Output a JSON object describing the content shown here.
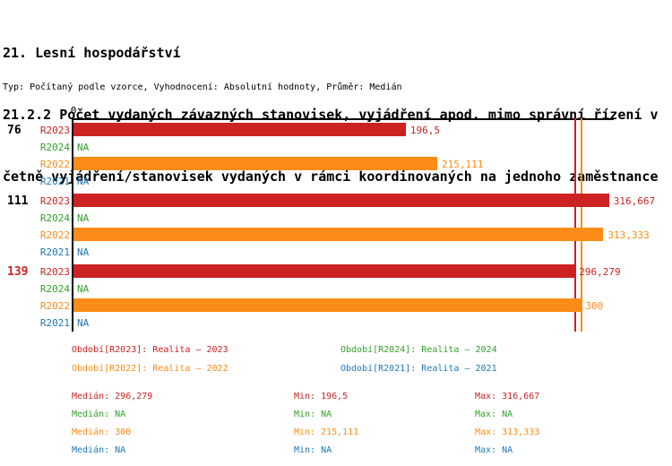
{
  "page": {
    "title_line1": "21. Lesní hospodářství",
    "title_line2": "21.2.2 Počet vydaných závazných stanovisek, vyjádření apod. mimo správní řízení v",
    "title_line3": "četně vyjádření/stanovisek vydaných v rámci koordinovaných na jednoho zaměstnance",
    "subtitle": "Typ: Počítaný podle vzorce, Vyhodnocení: Absolutní hodnoty, Průměr: Medián"
  },
  "colors": {
    "red": "#CC2222",
    "green": "#33A02C",
    "orange": "#FA8C17",
    "blue": "#1F77B4",
    "axis": "#000000",
    "background": "#FFFFFF"
  },
  "chart_data": {
    "type": "bar",
    "orientation": "horizontal",
    "title": "21.2.2 Počet vydaných závazných stanovisek, vyjádření apod. mimo správní řízení včetně vyjádření/stanovisek vydaných v rámci koordinovaných na jednoho zaměstnance",
    "axis": {
      "origin_label": "0",
      "max": 320,
      "grid": false
    },
    "series_order": [
      "R2023",
      "R2024",
      "R2022",
      "R2021"
    ],
    "series_colors": {
      "R2023": "red",
      "R2024": "green",
      "R2022": "orange",
      "R2021": "blue"
    },
    "groups": [
      {
        "label": "76",
        "label_color": "black",
        "rows": [
          {
            "series": "R2023",
            "value": 196.5,
            "label": "196,5"
          },
          {
            "series": "R2024",
            "value": null,
            "label": "NA"
          },
          {
            "series": "R2022",
            "value": 215.111,
            "label": "215,111"
          },
          {
            "series": "R2021",
            "value": null,
            "label": "NA"
          }
        ]
      },
      {
        "label": "111",
        "label_color": "black",
        "rows": [
          {
            "series": "R2023",
            "value": 316.667,
            "label": "316,667"
          },
          {
            "series": "R2024",
            "value": null,
            "label": "NA"
          },
          {
            "series": "R2022",
            "value": 313.333,
            "label": "313,333"
          },
          {
            "series": "R2021",
            "value": null,
            "label": "NA"
          }
        ]
      },
      {
        "label": "139",
        "label_color": "red",
        "rows": [
          {
            "series": "R2023",
            "value": 296.279,
            "label": "296,279"
          },
          {
            "series": "R2024",
            "value": null,
            "label": "NA"
          },
          {
            "series": "R2022",
            "value": 300,
            "label": "300"
          },
          {
            "series": "R2021",
            "value": null,
            "label": "NA"
          }
        ]
      }
    ],
    "median_lines": [
      {
        "value": 296.279,
        "color": "red"
      },
      {
        "value": 300,
        "color": "orange"
      }
    ],
    "legend": [
      {
        "label": "Období[R2023]: Realita – 2023",
        "color": "red",
        "col": 0,
        "row": 0
      },
      {
        "label": "Období[R2024]: Realita – 2024",
        "color": "green",
        "col": 1,
        "row": 0
      },
      {
        "label": "Období[R2022]: Realita – 2022",
        "color": "orange",
        "col": 0,
        "row": 1
      },
      {
        "label": "Období[R2021]: Realita – 2021",
        "color": "blue",
        "col": 1,
        "row": 1
      }
    ],
    "stats_labels": {
      "median": "Medián",
      "min": "Min",
      "max": "Max"
    },
    "stats": [
      {
        "color": "red",
        "median": "296,279",
        "min": "196,5",
        "max": "316,667"
      },
      {
        "color": "green",
        "median": "NA",
        "min": "NA",
        "max": "NA"
      },
      {
        "color": "orange",
        "median": "300",
        "min": "215,111",
        "max": "313,333"
      },
      {
        "color": "blue",
        "median": "NA",
        "min": "NA",
        "max": "NA"
      }
    ]
  }
}
